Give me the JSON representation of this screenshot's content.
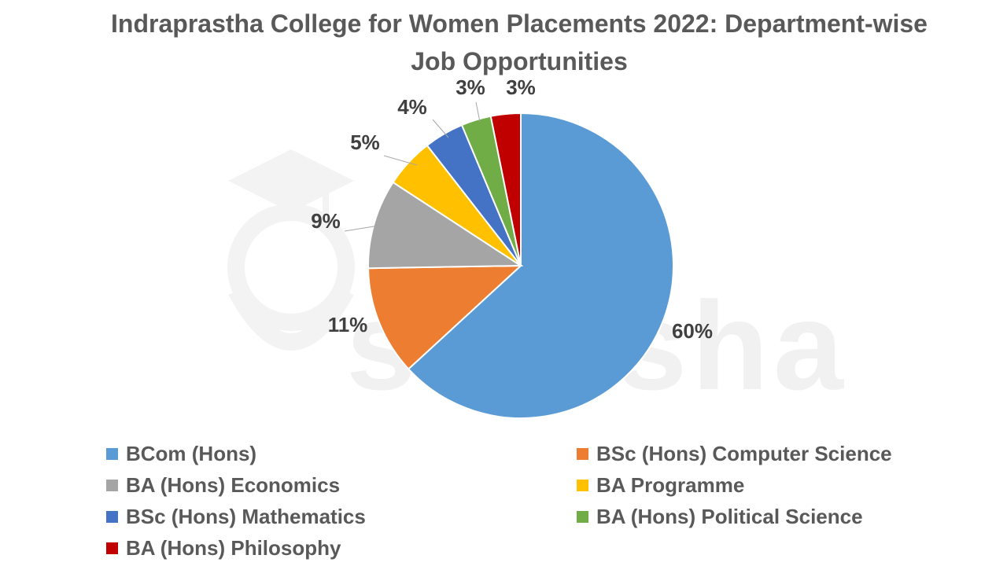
{
  "watermark_text": "shiksha",
  "chart_data": {
    "type": "pie",
    "title": "Indraprastha College for Women Placements 2022: Department-wise Job Opportunities",
    "categories": [
      "BCom (Hons)",
      "BSc (Hons) Computer Science",
      "BA (Hons) Economics",
      "BA Programme",
      "BSc (Hons) Mathematics",
      "BA (Hons) Political Science",
      "BA (Hons) Philosophy"
    ],
    "values": [
      60,
      11,
      9,
      5,
      4,
      3,
      3
    ],
    "labels": [
      "60%",
      "11%",
      "9%",
      "5%",
      "4%",
      "3%",
      "3%"
    ],
    "colors": [
      "#5B9BD5",
      "#ED7D31",
      "#A5A5A5",
      "#FFC000",
      "#4472C4",
      "#70AD47",
      "#C00000"
    ],
    "legend_placement": "bottom"
  }
}
